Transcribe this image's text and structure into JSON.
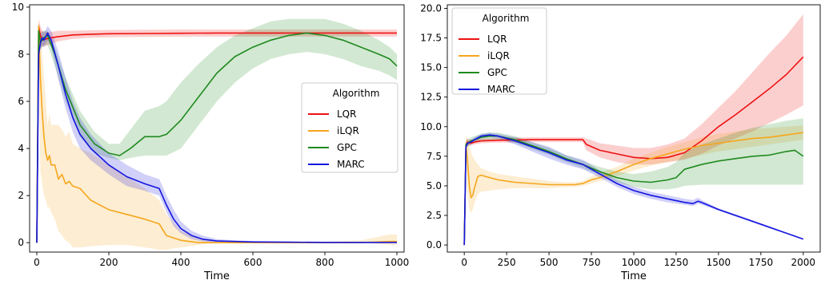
{
  "chart_data": [
    {
      "type": "line",
      "xlabel": "Time",
      "ylabel": "",
      "xlim": [
        -20,
        1020
      ],
      "ylim": [
        -0.4,
        10.1
      ],
      "xticks": [
        "0",
        "200",
        "400",
        "600",
        "800",
        "1000"
      ],
      "yticks": [
        "0",
        "2",
        "4",
        "6",
        "8",
        "10"
      ],
      "legend": {
        "title": "Algorithm",
        "position": "center-right",
        "entries": [
          "LQR",
          "iLQR",
          "GPC",
          "MARC"
        ]
      },
      "series": [
        {
          "name": "LQR",
          "color": "#ee1111",
          "x": [
            0,
            5,
            10,
            15,
            25,
            40,
            60,
            100,
            150,
            200,
            300,
            400,
            500,
            600,
            700,
            800,
            900,
            1000
          ],
          "y": [
            0,
            9.2,
            8.8,
            8.6,
            8.65,
            8.7,
            8.75,
            8.82,
            8.85,
            8.87,
            8.88,
            8.89,
            8.9,
            8.9,
            8.9,
            8.9,
            8.9,
            8.9
          ],
          "lower": [
            0,
            8.6,
            8.4,
            8.3,
            8.35,
            8.45,
            8.55,
            8.65,
            8.7,
            8.72,
            8.74,
            8.75,
            8.75,
            8.75,
            8.75,
            8.75,
            8.75,
            8.75
          ],
          "upper": [
            0,
            9.5,
            9.2,
            9.0,
            8.95,
            8.95,
            9.0,
            9.0,
            9.02,
            9.03,
            9.04,
            9.05,
            9.05,
            9.05,
            9.05,
            9.05,
            9.05,
            9.05
          ]
        },
        {
          "name": "iLQR",
          "color": "#f5a61c",
          "x": [
            0,
            5,
            10,
            15,
            20,
            25,
            30,
            35,
            40,
            50,
            60,
            70,
            80,
            90,
            100,
            120,
            150,
            200,
            250,
            300,
            340,
            360,
            400,
            450,
            500,
            600,
            700,
            800,
            900,
            980,
            1000
          ],
          "y": [
            0,
            9.2,
            7.0,
            5.5,
            4.5,
            3.8,
            3.5,
            3.7,
            3.3,
            3.3,
            2.7,
            2.9,
            2.5,
            2.6,
            2.4,
            2.3,
            1.8,
            1.4,
            1.2,
            1.0,
            0.8,
            0.3,
            0.1,
            0.0,
            0.0,
            0.0,
            0.0,
            0.0,
            0.0,
            0.05,
            0.05
          ],
          "lower": [
            0,
            8.0,
            3.0,
            2.5,
            2.0,
            1.8,
            1.5,
            1.5,
            1.3,
            1.0,
            0.5,
            0.3,
            0.1,
            0.0,
            -0.2,
            -0.2,
            -0.15,
            -0.1,
            -0.1,
            -0.2,
            -0.3,
            -0.3,
            -0.2,
            -0.1,
            0.0,
            0.0,
            0.0,
            0.0,
            0.0,
            -0.1,
            -0.1
          ],
          "upper": [
            0,
            9.4,
            9.0,
            8.0,
            7.0,
            6.0,
            5.0,
            5.5,
            5.0,
            5.0,
            5.0,
            4.8,
            4.5,
            4.7,
            4.2,
            4.0,
            3.8,
            3.3,
            2.8,
            2.3,
            1.8,
            1.2,
            0.5,
            0.2,
            0.1,
            0.05,
            0.05,
            0.05,
            0.1,
            0.35,
            0.35
          ]
        },
        {
          "name": "GPC",
          "color": "#1e8a1e",
          "x": [
            0,
            5,
            10,
            20,
            30,
            50,
            80,
            120,
            160,
            200,
            230,
            260,
            300,
            340,
            360,
            400,
            450,
            500,
            550,
            600,
            650,
            700,
            750,
            800,
            850,
            900,
            950,
            980,
            1000
          ],
          "y": [
            0,
            9.0,
            8.5,
            8.7,
            8.8,
            8.0,
            6.5,
            5.0,
            4.2,
            3.8,
            3.7,
            4.0,
            4.5,
            4.5,
            4.6,
            5.2,
            6.2,
            7.2,
            7.9,
            8.3,
            8.6,
            8.8,
            8.9,
            8.8,
            8.6,
            8.3,
            8.0,
            7.8,
            7.5
          ],
          "lower": [
            0,
            8.7,
            8.2,
            8.4,
            8.4,
            7.5,
            6.0,
            4.5,
            3.8,
            3.6,
            3.5,
            3.6,
            3.7,
            3.7,
            3.7,
            4.0,
            5.0,
            6.0,
            6.8,
            7.4,
            7.8,
            8.0,
            8.1,
            8.0,
            7.8,
            7.5,
            7.3,
            7.1,
            6.9
          ],
          "upper": [
            0,
            9.3,
            8.9,
            9.0,
            9.0,
            8.3,
            7.0,
            5.6,
            4.7,
            4.2,
            4.2,
            4.8,
            5.6,
            5.8,
            6.0,
            6.8,
            7.6,
            8.3,
            8.8,
            9.1,
            9.4,
            9.5,
            9.5,
            9.5,
            9.3,
            9.0,
            8.6,
            8.3,
            8.0
          ]
        },
        {
          "name": "MARC",
          "color": "#1414e0",
          "x": [
            0,
            5,
            10,
            15,
            20,
            30,
            40,
            60,
            80,
            100,
            120,
            150,
            200,
            250,
            300,
            340,
            360,
            380,
            400,
            430,
            460,
            500,
            550,
            600,
            700,
            800,
            900,
            1000
          ],
          "y": [
            0,
            8.0,
            8.5,
            8.7,
            8.6,
            8.9,
            8.6,
            7.5,
            6.3,
            5.3,
            4.6,
            4.0,
            3.3,
            2.8,
            2.5,
            2.3,
            1.6,
            1.0,
            0.6,
            0.3,
            0.15,
            0.07,
            0.05,
            0.03,
            0.02,
            0.01,
            0.01,
            0.01
          ],
          "lower": [
            0,
            7.7,
            8.2,
            8.4,
            8.3,
            8.6,
            8.3,
            6.9,
            5.7,
            4.7,
            4.0,
            3.5,
            2.9,
            2.4,
            2.2,
            2.0,
            1.3,
            0.7,
            0.4,
            0.15,
            0.05,
            0.0,
            0.0,
            0.0,
            0.0,
            0.0,
            0.0,
            0.0
          ],
          "upper": [
            0,
            8.3,
            8.8,
            9.0,
            8.9,
            9.2,
            9.0,
            8.1,
            7.0,
            6.0,
            5.3,
            4.6,
            3.8,
            3.3,
            2.9,
            2.7,
            2.0,
            1.4,
            0.9,
            0.5,
            0.3,
            0.15,
            0.1,
            0.07,
            0.05,
            0.03,
            0.03,
            0.03
          ]
        }
      ]
    },
    {
      "type": "line",
      "xlabel": "Time",
      "ylabel": "",
      "xlim": [
        -100,
        2100
      ],
      "ylim": [
        -0.6,
        20.3
      ],
      "xticks": [
        "0",
        "250",
        "500",
        "750",
        "1000",
        "1250",
        "1500",
        "1750",
        "2000"
      ],
      "yticks": [
        "0.0",
        "2.5",
        "5.0",
        "7.5",
        "10.0",
        "12.5",
        "15.0",
        "17.5",
        "20.0"
      ],
      "legend": {
        "title": "Algorithm",
        "position": "top-left",
        "entries": [
          "LQR",
          "iLQR",
          "GPC",
          "MARC"
        ]
      },
      "series": [
        {
          "name": "LQR",
          "color": "#ee1111",
          "x": [
            0,
            10,
            20,
            40,
            60,
            100,
            200,
            400,
            600,
            700,
            720,
            800,
            900,
            1000,
            1100,
            1200,
            1300,
            1400,
            1500,
            1600,
            1700,
            1800,
            1900,
            2000
          ],
          "y": [
            0,
            8.5,
            8.7,
            8.6,
            8.7,
            8.8,
            8.85,
            8.9,
            8.9,
            8.9,
            8.5,
            8.0,
            7.7,
            7.4,
            7.3,
            7.4,
            7.8,
            8.8,
            10.0,
            11.0,
            12.1,
            13.2,
            14.4,
            15.9
          ],
          "lower": [
            0,
            8.2,
            8.4,
            8.4,
            8.5,
            8.6,
            8.65,
            8.7,
            8.7,
            8.7,
            8.0,
            7.4,
            7.0,
            6.8,
            6.8,
            7.0,
            7.2,
            7.7,
            8.4,
            9.0,
            9.6,
            10.3,
            11.0,
            11.8
          ],
          "upper": [
            0,
            8.9,
            9.0,
            8.9,
            8.9,
            9.0,
            9.05,
            9.1,
            9.1,
            9.1,
            9.0,
            8.6,
            8.4,
            8.2,
            8.2,
            8.5,
            9.0,
            10.2,
            11.6,
            13.0,
            14.6,
            16.2,
            17.7,
            19.5
          ]
        },
        {
          "name": "iLQR",
          "color": "#f5a61c",
          "x": [
            0,
            10,
            20,
            30,
            40,
            50,
            60,
            80,
            100,
            150,
            200,
            300,
            400,
            500,
            600,
            650,
            700,
            750,
            800,
            900,
            1000,
            1100,
            1200,
            1300,
            1400,
            1500,
            1600,
            1700,
            1800,
            1900,
            2000
          ],
          "y": [
            0,
            8.5,
            7.0,
            5.0,
            4.0,
            4.2,
            4.8,
            5.8,
            5.9,
            5.7,
            5.5,
            5.3,
            5.2,
            5.1,
            5.1,
            5.1,
            5.2,
            5.5,
            5.7,
            6.2,
            6.8,
            7.3,
            7.7,
            8.1,
            8.4,
            8.6,
            8.8,
            9.0,
            9.1,
            9.3,
            9.5
          ],
          "lower": [
            0,
            7.5,
            4.0,
            3.0,
            2.7,
            3.0,
            3.5,
            4.3,
            4.5,
            4.6,
            4.7,
            4.8,
            4.8,
            4.8,
            4.9,
            4.9,
            5.0,
            5.2,
            5.4,
            5.8,
            6.3,
            6.7,
            7.0,
            7.3,
            7.6,
            7.9,
            8.1,
            8.3,
            8.5,
            8.7,
            8.9
          ],
          "upper": [
            0,
            9.2,
            9.0,
            8.5,
            7.8,
            7.5,
            7.2,
            6.8,
            6.5,
            6.2,
            6.0,
            5.8,
            5.6,
            5.4,
            5.3,
            5.3,
            5.4,
            5.8,
            6.1,
            6.6,
            7.3,
            7.8,
            8.3,
            8.7,
            9.1,
            9.4,
            9.6,
            9.8,
            9.9,
            10.0,
            10.1
          ]
        },
        {
          "name": "GPC",
          "color": "#1e8a1e",
          "x": [
            0,
            10,
            20,
            40,
            60,
            100,
            150,
            200,
            300,
            400,
            500,
            600,
            700,
            800,
            900,
            1000,
            1100,
            1200,
            1250,
            1300,
            1400,
            1500,
            1600,
            1700,
            1800,
            1900,
            1950,
            2000
          ],
          "y": [
            0,
            8.5,
            8.6,
            8.8,
            8.9,
            9.1,
            9.2,
            9.2,
            8.9,
            8.4,
            7.9,
            7.3,
            6.8,
            6.2,
            5.7,
            5.4,
            5.3,
            5.5,
            5.7,
            6.4,
            6.8,
            7.1,
            7.3,
            7.5,
            7.6,
            7.9,
            8.0,
            7.5
          ],
          "lower": [
            0,
            8.2,
            8.3,
            8.5,
            8.6,
            8.8,
            8.9,
            8.9,
            8.6,
            8.1,
            7.6,
            7.0,
            6.5,
            5.9,
            5.3,
            4.9,
            4.7,
            4.7,
            4.8,
            5.0,
            5.1,
            5.1,
            5.1,
            5.1,
            5.1,
            5.1,
            5.1,
            5.1
          ],
          "upper": [
            0,
            8.8,
            8.9,
            9.1,
            9.2,
            9.4,
            9.5,
            9.5,
            9.2,
            8.7,
            8.2,
            7.6,
            7.1,
            6.6,
            6.2,
            6.0,
            6.2,
            6.6,
            7.0,
            7.8,
            8.5,
            9.0,
            9.5,
            9.9,
            10.2,
            10.5,
            10.6,
            10.7
          ]
        },
        {
          "name": "MARC",
          "color": "#1414e0",
          "x": [
            0,
            10,
            20,
            40,
            60,
            100,
            150,
            200,
            300,
            400,
            500,
            600,
            700,
            800,
            900,
            1000,
            1100,
            1200,
            1300,
            1350,
            1380,
            1400,
            1500,
            1600,
            1700,
            1800,
            1900,
            2000
          ],
          "y": [
            0,
            8.3,
            8.6,
            8.7,
            8.9,
            9.2,
            9.3,
            9.2,
            8.8,
            8.3,
            7.8,
            7.2,
            6.8,
            6.0,
            5.2,
            4.6,
            4.2,
            3.9,
            3.6,
            3.5,
            3.7,
            3.6,
            3.0,
            2.5,
            2.0,
            1.5,
            1.0,
            0.5
          ],
          "lower": [
            0,
            8.1,
            8.4,
            8.5,
            8.7,
            9.0,
            9.1,
            9.0,
            8.5,
            7.9,
            7.3,
            6.8,
            6.4,
            5.7,
            4.9,
            4.3,
            3.9,
            3.6,
            3.4,
            3.3,
            3.5,
            3.4,
            2.9,
            2.4,
            1.9,
            1.4,
            0.95,
            0.45
          ],
          "upper": [
            0,
            8.5,
            8.8,
            8.9,
            9.1,
            9.4,
            9.5,
            9.4,
            9.1,
            8.7,
            8.3,
            7.6,
            7.2,
            6.3,
            5.5,
            4.9,
            4.5,
            4.2,
            3.9,
            3.8,
            4.0,
            3.8,
            3.1,
            2.6,
            2.1,
            1.6,
            1.05,
            0.55
          ]
        }
      ]
    }
  ]
}
